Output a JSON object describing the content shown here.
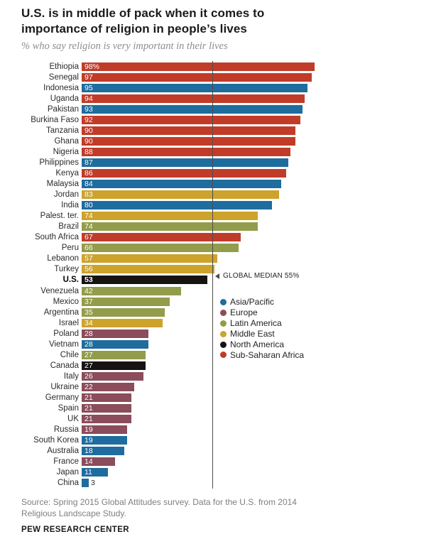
{
  "header": {
    "title_lines": [
      "U.S. is in middle of pack when it comes to",
      "importance of religion in people’s lives"
    ],
    "subtitle": "% who say religion is very important in their lives"
  },
  "chart_data": {
    "type": "bar",
    "orientation": "horizontal",
    "title": "U.S. is in middle of pack when it comes to importance of religion in people’s lives",
    "subtitle": "% who say religion is very important in their lives",
    "xlabel": "% who say religion is very important",
    "xlim": [
      0,
      100
    ],
    "grid": false,
    "legend_position": "right-middle",
    "median_annotation": {
      "value": 55,
      "label": "GLOBAL MEDIAN 55%"
    },
    "region_colors": {
      "Asia/Pacific": "#1f6c9e",
      "Europe": "#8b4c5b",
      "Latin America": "#939c4b",
      "Middle East": "#cda32c",
      "North America": "#161412",
      "Sub-Saharan Africa": "#c03c29"
    },
    "legend": [
      "Asia/Pacific",
      "Europe",
      "Latin America",
      "Middle East",
      "North America",
      "Sub-Saharan Africa"
    ],
    "bars": [
      {
        "country": "Ethiopia",
        "value": 98,
        "value_label": "98%",
        "region": "Sub-Saharan Africa"
      },
      {
        "country": "Senegal",
        "value": 97,
        "value_label": "97",
        "region": "Sub-Saharan Africa"
      },
      {
        "country": "Indonesia",
        "value": 95,
        "value_label": "95",
        "region": "Asia/Pacific"
      },
      {
        "country": "Uganda",
        "value": 94,
        "value_label": "94",
        "region": "Sub-Saharan Africa"
      },
      {
        "country": "Pakistan",
        "value": 93,
        "value_label": "93",
        "region": "Asia/Pacific"
      },
      {
        "country": "Burkina Faso",
        "value": 92,
        "value_label": "92",
        "region": "Sub-Saharan Africa"
      },
      {
        "country": "Tanzania",
        "value": 90,
        "value_label": "90",
        "region": "Sub-Saharan Africa"
      },
      {
        "country": "Ghana",
        "value": 90,
        "value_label": "90",
        "region": "Sub-Saharan Africa"
      },
      {
        "country": "Nigeria",
        "value": 88,
        "value_label": "88",
        "region": "Sub-Saharan Africa"
      },
      {
        "country": "Philippines",
        "value": 87,
        "value_label": "87",
        "region": "Asia/Pacific"
      },
      {
        "country": "Kenya",
        "value": 86,
        "value_label": "86",
        "region": "Sub-Saharan Africa"
      },
      {
        "country": "Malaysia",
        "value": 84,
        "value_label": "84",
        "region": "Asia/Pacific"
      },
      {
        "country": "Jordan",
        "value": 83,
        "value_label": "83",
        "region": "Middle East"
      },
      {
        "country": "India",
        "value": 80,
        "value_label": "80",
        "region": "Asia/Pacific"
      },
      {
        "country": "Palest. ter.",
        "value": 74,
        "value_label": "74",
        "region": "Middle East"
      },
      {
        "country": "Brazil",
        "value": 74,
        "value_label": "74",
        "region": "Latin America"
      },
      {
        "country": "South Africa",
        "value": 67,
        "value_label": "67",
        "region": "Sub-Saharan Africa"
      },
      {
        "country": "Peru",
        "value": 66,
        "value_label": "66",
        "region": "Latin America"
      },
      {
        "country": "Lebanon",
        "value": 57,
        "value_label": "57",
        "region": "Middle East"
      },
      {
        "country": "Turkey",
        "value": 56,
        "value_label": "56",
        "region": "Middle East"
      },
      {
        "country": "U.S.",
        "value": 53,
        "value_label": "53",
        "region": "North America",
        "emphasis": true
      },
      {
        "country": "Venezuela",
        "value": 42,
        "value_label": "42",
        "region": "Latin America"
      },
      {
        "country": "Mexico",
        "value": 37,
        "value_label": "37",
        "region": "Latin America"
      },
      {
        "country": "Argentina",
        "value": 35,
        "value_label": "35",
        "region": "Latin America"
      },
      {
        "country": "Israel",
        "value": 34,
        "value_label": "34",
        "region": "Middle East"
      },
      {
        "country": "Poland",
        "value": 28,
        "value_label": "28",
        "region": "Europe"
      },
      {
        "country": "Vietnam",
        "value": 28,
        "value_label": "28",
        "region": "Asia/Pacific"
      },
      {
        "country": "Chile",
        "value": 27,
        "value_label": "27",
        "region": "Latin America"
      },
      {
        "country": "Canada",
        "value": 27,
        "value_label": "27",
        "region": "North America"
      },
      {
        "country": "Italy",
        "value": 26,
        "value_label": "26",
        "region": "Europe"
      },
      {
        "country": "Ukraine",
        "value": 22,
        "value_label": "22",
        "region": "Europe"
      },
      {
        "country": "Germany",
        "value": 21,
        "value_label": "21",
        "region": "Europe"
      },
      {
        "country": "Spain",
        "value": 21,
        "value_label": "21",
        "region": "Europe"
      },
      {
        "country": "UK",
        "value": 21,
        "value_label": "21",
        "region": "Europe"
      },
      {
        "country": "Russia",
        "value": 19,
        "value_label": "19",
        "region": "Europe"
      },
      {
        "country": "South Korea",
        "value": 19,
        "value_label": "19",
        "region": "Asia/Pacific"
      },
      {
        "country": "Australia",
        "value": 18,
        "value_label": "18",
        "region": "Asia/Pacific"
      },
      {
        "country": "France",
        "value": 14,
        "value_label": "14",
        "region": "Europe"
      },
      {
        "country": "Japan",
        "value": 11,
        "value_label": "11",
        "region": "Asia/Pacific"
      },
      {
        "country": "China",
        "value": 3,
        "value_label": "3",
        "region": "Asia/Pacific"
      }
    ]
  },
  "footer": {
    "source_lines": [
      "Source: Spring 2015 Global Attitudes survey. Data for the U.S. from 2014",
      "Religious Landscape Study."
    ],
    "brand": "PEW RESEARCH CENTER"
  }
}
